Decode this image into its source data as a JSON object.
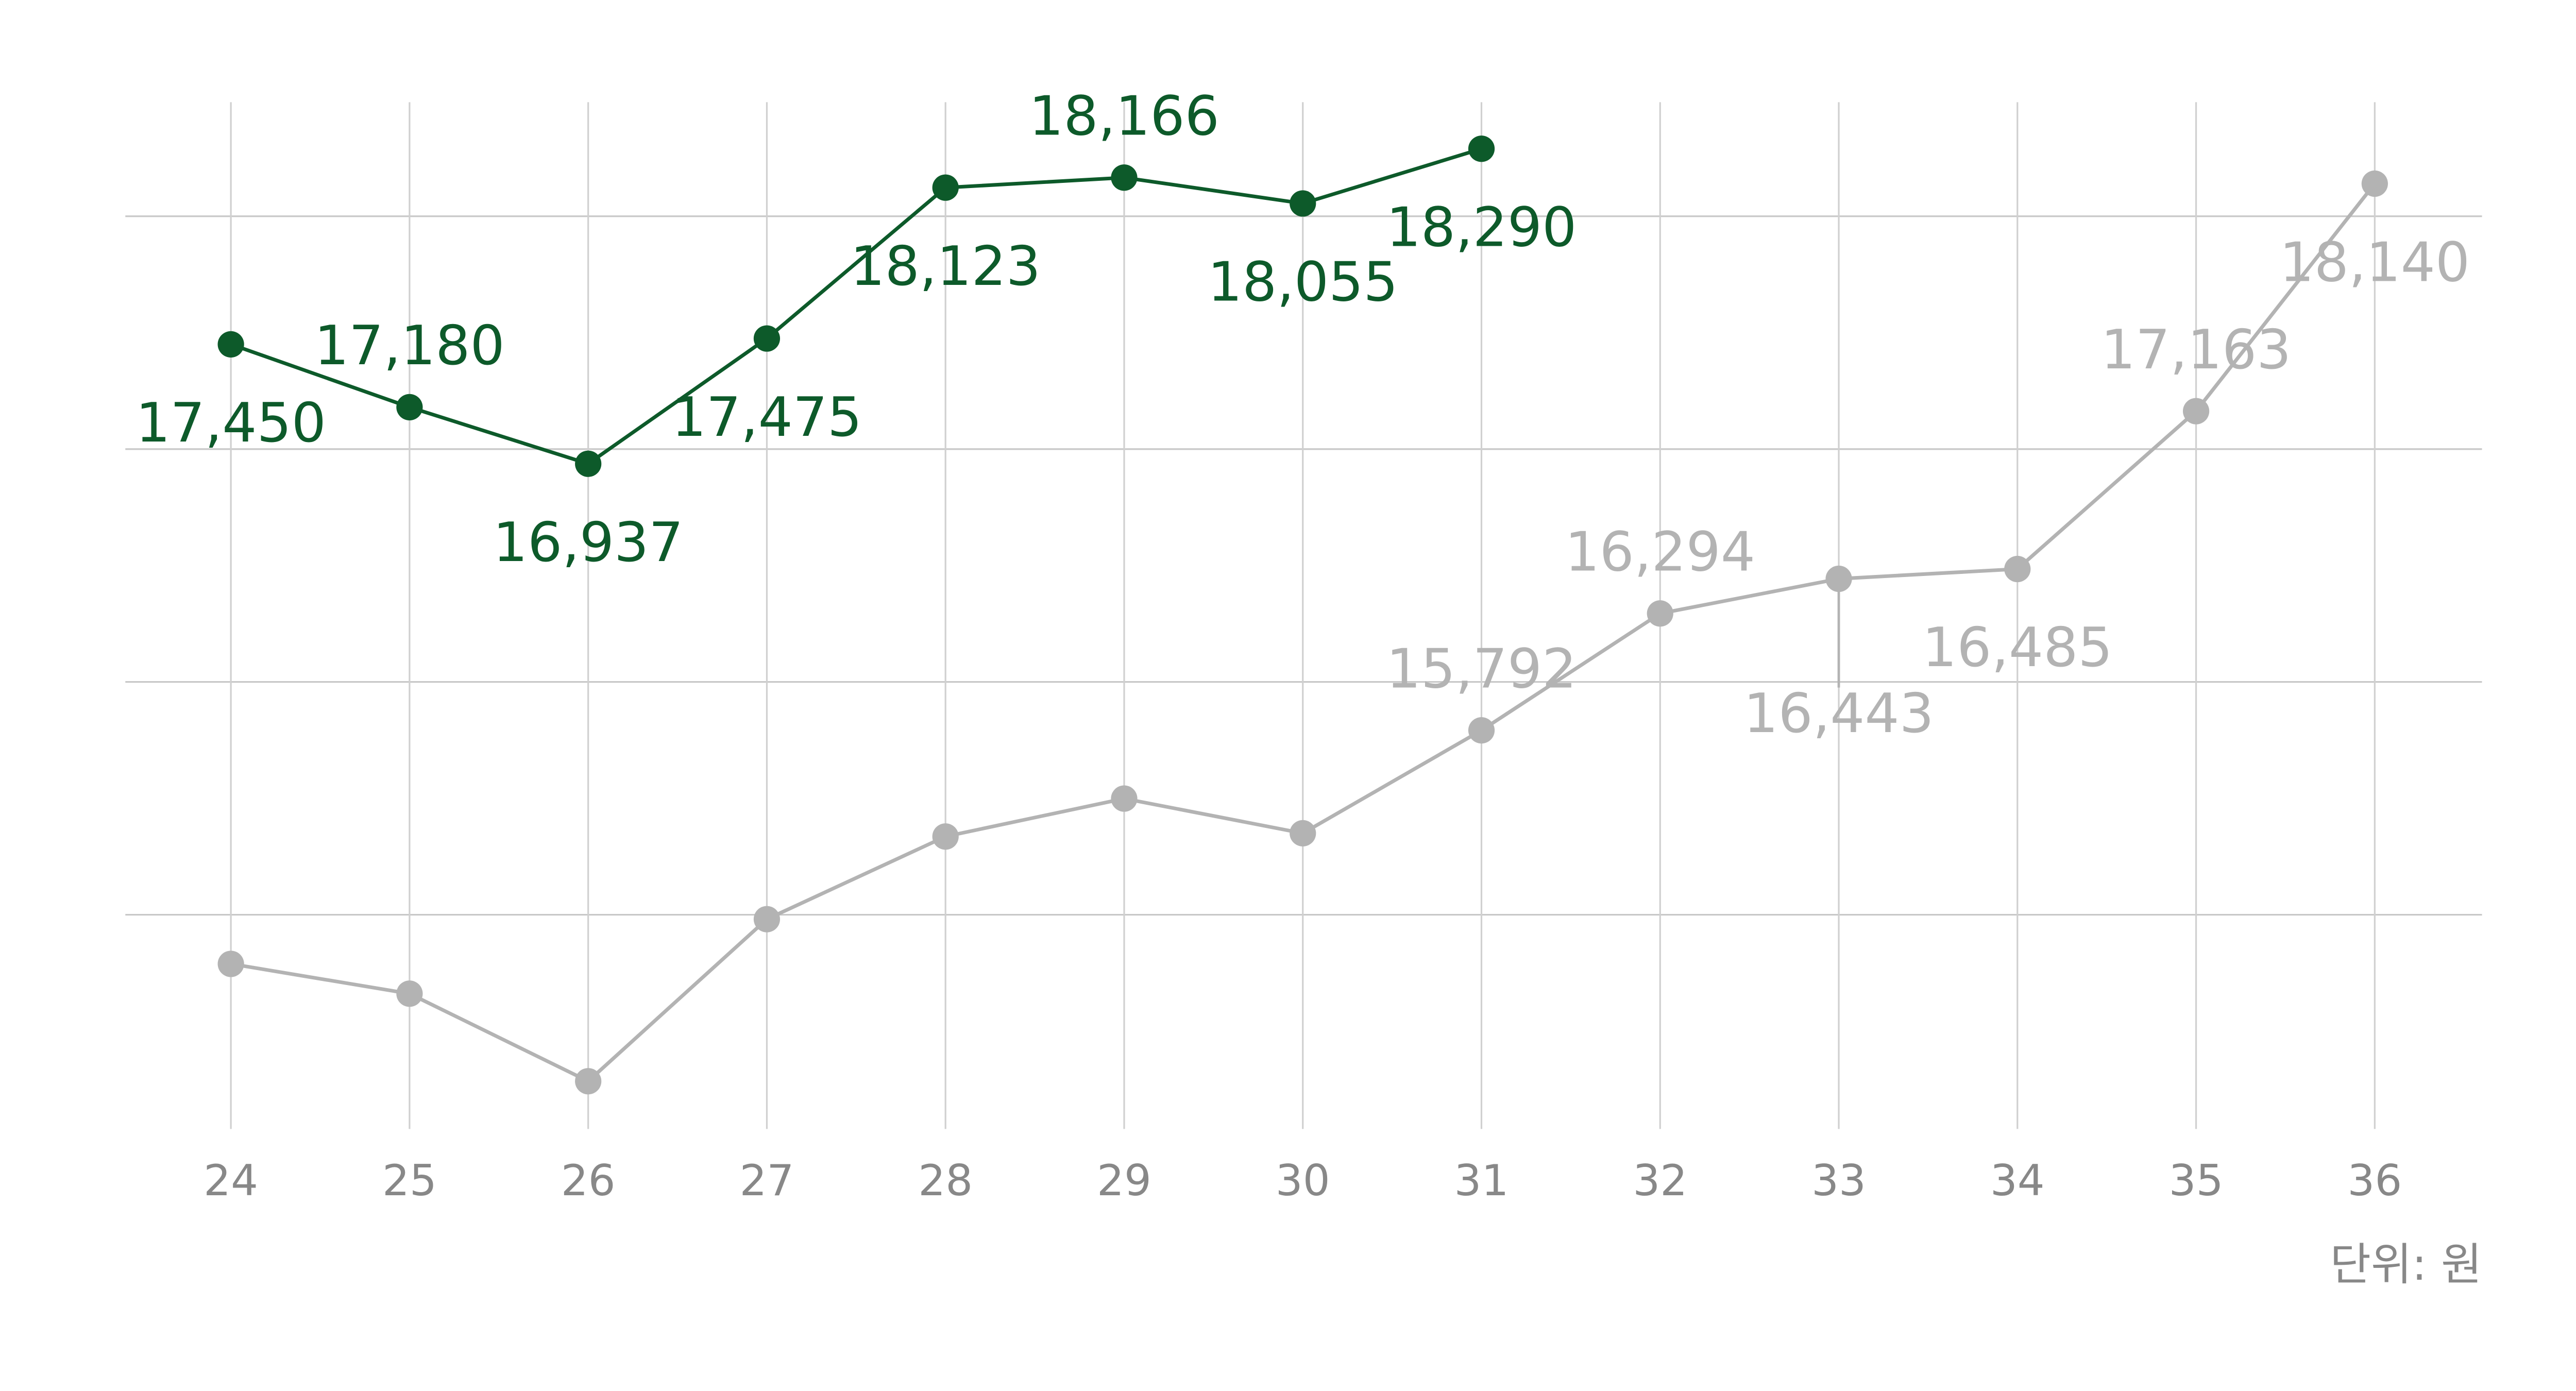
{
  "chart_data": {
    "type": "line",
    "categories": [
      "24",
      "25",
      "26",
      "27",
      "28",
      "29",
      "30",
      "31",
      "32",
      "33",
      "34",
      "35",
      "36"
    ],
    "series": [
      {
        "color": "#0d5a2a",
        "values": [
          17450,
          17180,
          16937,
          17475,
          18123,
          18166,
          18055,
          18290,
          null,
          null,
          null,
          null,
          null
        ],
        "value_labels": [
          "17,450",
          "17,180",
          "16,937",
          "17,475",
          "18,123",
          "18,166",
          "18,055",
          "18,290",
          null,
          null,
          null,
          null,
          null
        ]
      },
      {
        "color": "#b3b3b3",
        "values": [
          14789,
          14661,
          14285,
          14981,
          15336,
          15499,
          15350,
          15792,
          16294,
          16443,
          16485,
          17163,
          18140
        ],
        "value_labels": [
          null,
          null,
          null,
          null,
          null,
          null,
          null,
          "15,792",
          "16,294",
          "16,443",
          "16,485",
          "17,163",
          "18,140"
        ]
      }
    ],
    "ylim": [
      14080,
      18490
    ],
    "yticks": [
      15000,
      16000,
      17000,
      18000
    ],
    "grid": true,
    "note": "단위: 원"
  }
}
